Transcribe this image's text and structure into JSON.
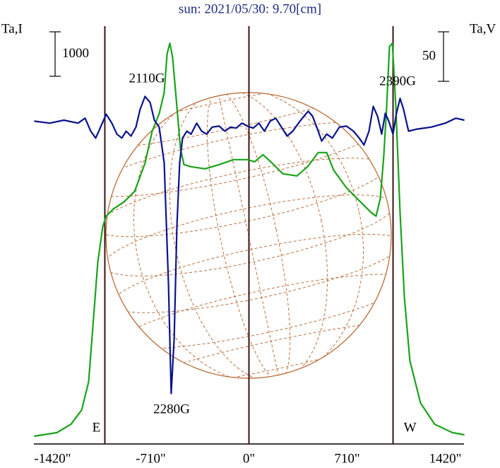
{
  "chart_data": {
    "type": "line",
    "title": "sun: 2021/05/30: 9.70[cm]",
    "y_label": "Ta,I",
    "y2_label": "Ta,V",
    "xlim": [
      -1555,
      1555
    ],
    "ylim": [
      -200,
      9200
    ],
    "y2lim": [
      -325,
      97
    ],
    "xticks": [
      {
        "value": -1420,
        "label": "-1420\""
      },
      {
        "value": -710,
        "label": "-710\""
      },
      {
        "value": 0,
        "label": "0\""
      },
      {
        "value": 710,
        "label": "710\""
      },
      {
        "value": 1420,
        "label": "1420\""
      }
    ],
    "scale_bar": 1000,
    "scale_bar_y2": 50,
    "limbs": [
      {
        "label": "E",
        "x": -1042
      },
      {
        "label": "W",
        "x": 1042
      }
    ],
    "annotations": [
      "2110G",
      "2280G",
      "2390G"
    ],
    "series": [
      {
        "name": "Ta,I",
        "color": "#1aa31a",
        "axis": "y",
        "x": [
          -1553,
          -1389,
          -1287,
          -1210,
          -1159,
          -1124,
          -1093,
          -1057,
          -1032,
          -981,
          -904,
          -827,
          -751,
          -700,
          -649,
          -613,
          -592,
          -572,
          -552,
          -521,
          -495,
          -470,
          -419,
          -317,
          -215,
          -112,
          -10,
          41,
          102,
          168,
          245,
          347,
          424,
          501,
          562,
          613,
          705,
          807,
          884,
          919,
          950,
          975,
          996,
          1016,
          1037,
          1062,
          1093,
          1124,
          1164,
          1241,
          1343,
          1471,
          1558
        ],
        "values": [
          -25,
          54,
          244,
          562,
          1197,
          2625,
          3895,
          4689,
          4927,
          5086,
          5244,
          5483,
          6117,
          6832,
          7229,
          7705,
          8578,
          8816,
          8498,
          7387,
          6435,
          6086,
          6038,
          5991,
          6086,
          6197,
          6197,
          6149,
          6308,
          6117,
          5879,
          5832,
          6038,
          6356,
          6356,
          5959,
          5562,
          5244,
          5006,
          4927,
          5324,
          6276,
          7387,
          8737,
          8816,
          7387,
          5006,
          3102,
          1673,
          721,
          244,
          54,
          6
        ]
      },
      {
        "name": "Ta,V",
        "color": "#0a128c",
        "axis": "y2",
        "x": [
          -1553,
          -1440,
          -1338,
          -1236,
          -1185,
          -1144,
          -1108,
          -1073,
          -1032,
          -991,
          -955,
          -919,
          -888,
          -853,
          -817,
          -787,
          -751,
          -715,
          -684,
          -649,
          -613,
          -582,
          -562,
          -541,
          -521,
          -501,
          -480,
          -449,
          -419,
          -378,
          -342,
          -306,
          -266,
          -215,
          -174,
          -133,
          -92,
          -51,
          -10,
          31,
          72,
          112,
          153,
          194,
          235,
          276,
          317,
          358,
          398,
          429,
          460,
          490,
          526,
          562,
          603,
          654,
          705,
          756,
          797,
          832,
          868,
          899,
          930,
          960,
          986,
          1011,
          1042,
          1067,
          1093,
          1118,
          1154,
          1216,
          1318,
          1420,
          1496,
          1558
        ],
        "values": [
          1,
          -1,
          2,
          -1,
          4,
          -9,
          -16,
          -5,
          8,
          -1,
          -12,
          -16,
          -9,
          -14,
          -5,
          13,
          26,
          20,
          2,
          -5,
          -41,
          -162,
          -274,
          -219,
          -105,
          -41,
          -16,
          -9,
          -12,
          -1,
          -9,
          -12,
          -5,
          -4,
          -9,
          -5,
          -6,
          -1,
          -4,
          -6,
          -1,
          -9,
          1,
          4,
          -5,
          -14,
          -9,
          -1,
          6,
          11,
          6,
          -5,
          -19,
          -12,
          -16,
          -5,
          -4,
          -9,
          -16,
          -23,
          -9,
          16,
          6,
          -12,
          9,
          1,
          -12,
          9,
          24,
          13,
          -9,
          -7,
          -5,
          -1,
          4,
          2
        ]
      }
    ]
  }
}
